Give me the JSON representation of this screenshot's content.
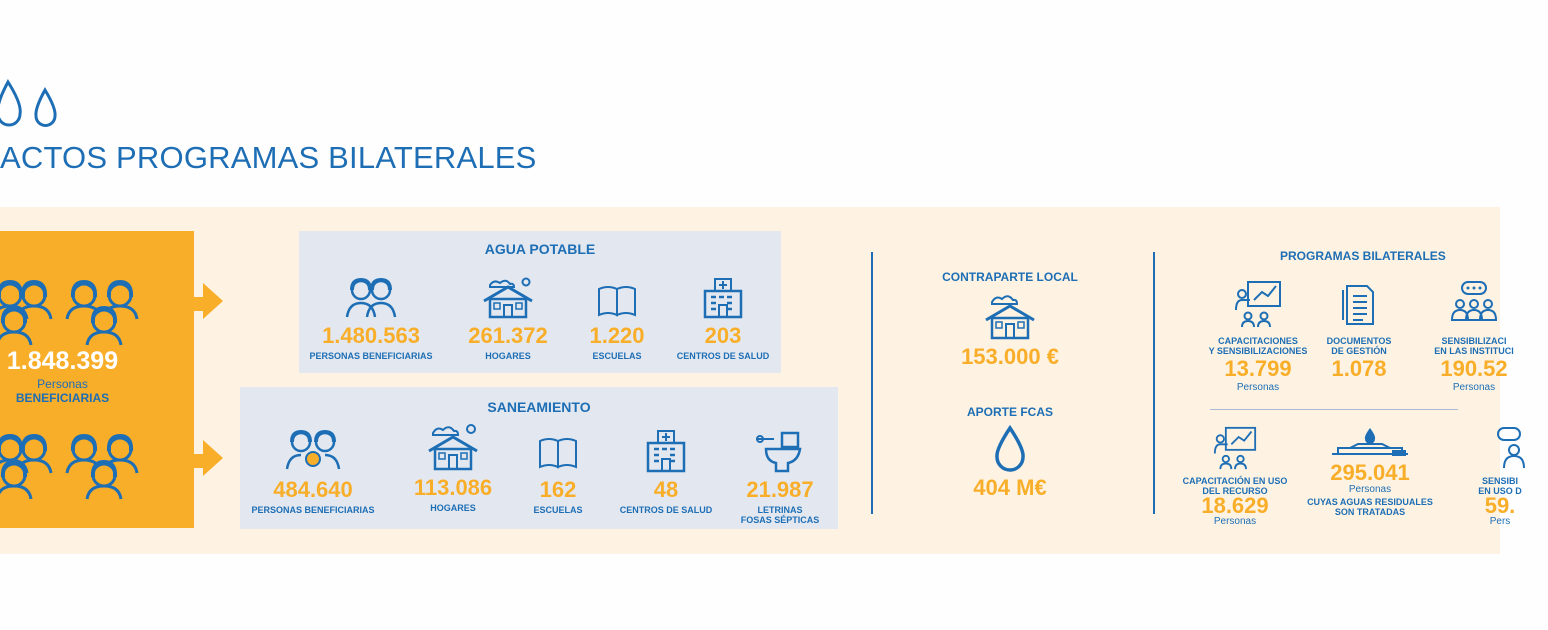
{
  "header": {
    "title": "ACTOS PROGRAMAS BILATERALES"
  },
  "total": {
    "value": "1.848.399",
    "unit": "Personas",
    "label": "BENEFICIARIAS"
  },
  "agua": {
    "title": "AGUA POTABLE",
    "items": [
      {
        "value": "1.480.563",
        "label": "PERSONAS BENEFICIARIAS",
        "icon": "people-icon"
      },
      {
        "value": "261.372",
        "label": "HOGARES",
        "icon": "house-icon"
      },
      {
        "value": "1.220",
        "label": "ESCUELAS",
        "icon": "book-icon"
      },
      {
        "value": "203",
        "label": "CENTROS DE SALUD",
        "icon": "hospital-icon"
      }
    ]
  },
  "saneamiento": {
    "title": "SANEAMIENTO",
    "items": [
      {
        "value": "484.640",
        "label": "PERSONAS BENEFICIARIAS",
        "icon": "people-icon"
      },
      {
        "value": "113.086",
        "label": "HOGARES",
        "icon": "house-icon"
      },
      {
        "value": "162",
        "label": "ESCUELAS",
        "icon": "book-icon"
      },
      {
        "value": "48",
        "label": "CENTROS DE SALUD",
        "icon": "hospital-icon"
      },
      {
        "value": "21.987",
        "label_line1": "LETRINAS",
        "label_line2": "FOSAS SÉPTICAS",
        "icon": "toilet-icon"
      }
    ]
  },
  "contraparte": {
    "title": "CONTRAPARTE LOCAL",
    "value": "153.000 €",
    "icon": "house-icon"
  },
  "aporte": {
    "title": "APORTE FCAS",
    "value": "404 M€",
    "icon": "water-drop-icon"
  },
  "programas": {
    "title": "PROGRAMAS BILATERALES",
    "row1": [
      {
        "label_line1": "CAPACITACIONES",
        "label_line2": "Y SENSIBILIZACIONES",
        "value": "13.799",
        "unit": "Personas",
        "icon": "presentation-icon"
      },
      {
        "label_line1": "DOCUMENTOS",
        "label_line2": "DE GESTIÓN",
        "value": "1.078",
        "unit": "",
        "icon": "document-icon"
      },
      {
        "label_line1": "SENSIBILIZACI",
        "label_line2": "EN LAS INSTITUCI",
        "value": "190.52",
        "unit": "Personas",
        "icon": "group-chat-icon"
      }
    ],
    "row2": [
      {
        "label_line1": "CAPACITACIÓN EN USO",
        "label_line2": "DEL RECURSO",
        "value": "18.629",
        "unit": "Personas",
        "icon": "presentation-icon"
      },
      {
        "value": "295.041",
        "unit": "Personas",
        "label_line1": "CUYAS AGUAS RESIDUALES",
        "label_line2": "SON TRATADAS",
        "icon": "treatment-plant-icon"
      },
      {
        "label_line1": "SENSIBI",
        "label_line2": "EN USO D",
        "value": "59.",
        "unit": "Pers",
        "icon": "person-chat-icon"
      }
    ]
  },
  "colors": {
    "blue": "#1d6eb5",
    "orange": "#f9ae2a",
    "band": "#fef3e2",
    "panel": "#e3e8f0"
  }
}
